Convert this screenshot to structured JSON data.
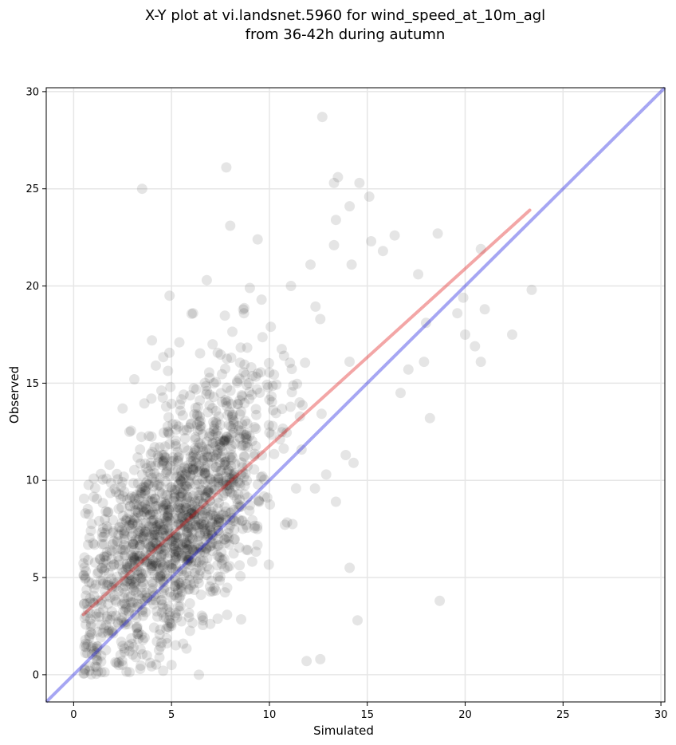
{
  "chart_data": {
    "type": "scatter",
    "title_line1": "X-Y plot at vi.landsnet.5960 for wind_speed_at_10m_agl",
    "title_line2": "from 36-42h during autumn",
    "xlabel": "Simulated",
    "ylabel": "Observed",
    "xlim": [
      -1.4,
      30.2
    ],
    "ylim": [
      -1.4,
      30.2
    ],
    "xticks": [
      0,
      5,
      10,
      15,
      20,
      25,
      30
    ],
    "yticks": [
      0,
      5,
      10,
      15,
      20,
      25,
      30
    ],
    "grid": true,
    "colors": {
      "points": "#000000",
      "identity_line": "#0000dd",
      "regression_line": "#dd0000",
      "grid": "#e6e6e6"
    },
    "identity_line": {
      "x": [
        -1.4,
        30.2
      ],
      "y": [
        -1.4,
        30.2
      ]
    },
    "regression_line": {
      "x": [
        0.5,
        23.3
      ],
      "y": [
        3.1,
        23.9
      ]
    },
    "outlier_points": [
      [
        12.7,
        28.7
      ],
      [
        7.8,
        26.1
      ],
      [
        3.5,
        25.0
      ],
      [
        13.5,
        25.6
      ],
      [
        13.3,
        25.3
      ],
      [
        14.6,
        25.3
      ],
      [
        15.1,
        24.6
      ],
      [
        14.1,
        24.1
      ],
      [
        13.4,
        23.4
      ],
      [
        8.0,
        23.1
      ],
      [
        9.4,
        22.4
      ],
      [
        13.3,
        22.1
      ],
      [
        15.2,
        22.3
      ],
      [
        16.4,
        22.6
      ],
      [
        18.6,
        22.7
      ],
      [
        15.8,
        21.8
      ],
      [
        20.8,
        21.9
      ],
      [
        12.1,
        21.1
      ],
      [
        14.2,
        21.1
      ],
      [
        17.6,
        20.6
      ],
      [
        6.8,
        20.3
      ],
      [
        9.0,
        19.9
      ],
      [
        9.6,
        19.3
      ],
      [
        19.9,
        19.4
      ],
      [
        23.4,
        19.8
      ],
      [
        21.0,
        18.8
      ],
      [
        19.6,
        18.6
      ],
      [
        18.0,
        18.1
      ],
      [
        20.0,
        17.5
      ],
      [
        22.4,
        17.5
      ],
      [
        20.5,
        16.9
      ],
      [
        20.8,
        16.1
      ],
      [
        17.9,
        16.1
      ],
      [
        17.1,
        15.7
      ],
      [
        16.7,
        14.5
      ],
      [
        18.2,
        13.2
      ],
      [
        13.9,
        11.3
      ],
      [
        14.3,
        10.9
      ],
      [
        12.9,
        10.3
      ],
      [
        13.4,
        8.9
      ],
      [
        14.1,
        5.5
      ],
      [
        18.7,
        3.8
      ],
      [
        14.5,
        2.8
      ],
      [
        12.6,
        0.8
      ],
      [
        11.9,
        0.7
      ],
      [
        1.1,
        9.6
      ],
      [
        0.6,
        8.3
      ],
      [
        0.6,
        5.0
      ],
      [
        0.8,
        1.9
      ],
      [
        2.5,
        13.7
      ],
      [
        3.1,
        15.2
      ],
      [
        4.0,
        17.2
      ],
      [
        4.2,
        15.9
      ],
      [
        4.9,
        19.5
      ],
      [
        5.4,
        17.1
      ],
      [
        6.1,
        18.6
      ],
      [
        7.1,
        17.0
      ],
      [
        8.7,
        18.6
      ],
      [
        11.1,
        20.0
      ],
      [
        12.6,
        18.3
      ],
      [
        6.4,
        0.0
      ],
      [
        5.0,
        0.5
      ],
      [
        3.4,
        0.3
      ],
      [
        0.8,
        0.2
      ],
      [
        2.2,
        0.6
      ]
    ],
    "point_cloud": {
      "count": 1500,
      "x_center": 5.2,
      "x_spread": 2.6,
      "intercept": 3.1,
      "slope": 0.91,
      "y_spread": 2.9
    }
  }
}
